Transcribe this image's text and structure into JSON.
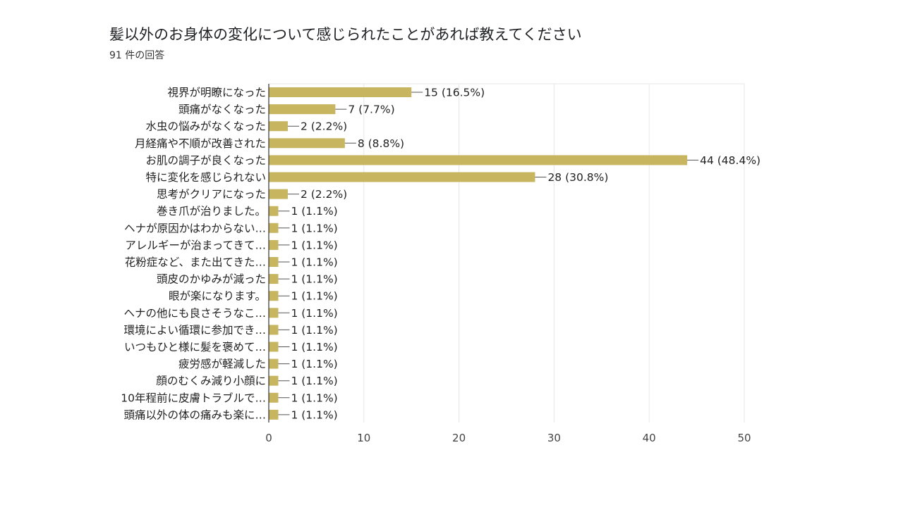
{
  "chart_data": {
    "type": "bar",
    "orientation": "horizontal",
    "title": "髪以外のお身体の変化について感じられたことがあれば教えてください",
    "subtitle": "91 件の回答",
    "categories": [
      "視界が明瞭になった",
      "頭痛がなくなった",
      "水虫の悩みがなくなった",
      "月経痛や不順が改善された",
      "お肌の調子が良くなった",
      "特に変化を感じられない",
      "思考がクリアになった",
      "巻き爪が治りました。",
      "ヘナが原因かはわからない…",
      "アレルギーが治まってきて…",
      "花粉症など、また出てきた…",
      "頭皮のかゆみが減った",
      "眼が楽になります。",
      "ヘナの他にも良さそうなこ…",
      "環境によい循環に参加でき…",
      "いつもひと様に髪を褒めて…",
      "疲労感が軽減した",
      "顔のむくみ減り小顔に",
      "10年程前に皮膚トラブルで…",
      "頭痛以外の体の痛みも楽に…"
    ],
    "values": [
      15,
      7,
      2,
      8,
      44,
      28,
      2,
      1,
      1,
      1,
      1,
      1,
      1,
      1,
      1,
      1,
      1,
      1,
      1,
      1
    ],
    "value_labels": [
      "15 (16.5%)",
      "7 (7.7%)",
      "2 (2.2%)",
      "8 (8.8%)",
      "44 (48.4%)",
      "28 (30.8%)",
      "2 (2.2%)",
      "1 (1.1%)",
      "1 (1.1%)",
      "1 (1.1%)",
      "1 (1.1%)",
      "1 (1.1%)",
      "1 (1.1%)",
      "1 (1.1%)",
      "1 (1.1%)",
      "1 (1.1%)",
      "1 (1.1%)",
      "1 (1.1%)",
      "1 (1.1%)",
      "1 (1.1%)"
    ],
    "xlim": [
      0,
      50
    ],
    "x_ticks": [
      "0",
      "10",
      "20",
      "30",
      "40",
      "50"
    ],
    "grid": true,
    "bar_color": "#c8b560",
    "grid_color": "#e6e6e6",
    "axis_color": "#333333"
  }
}
